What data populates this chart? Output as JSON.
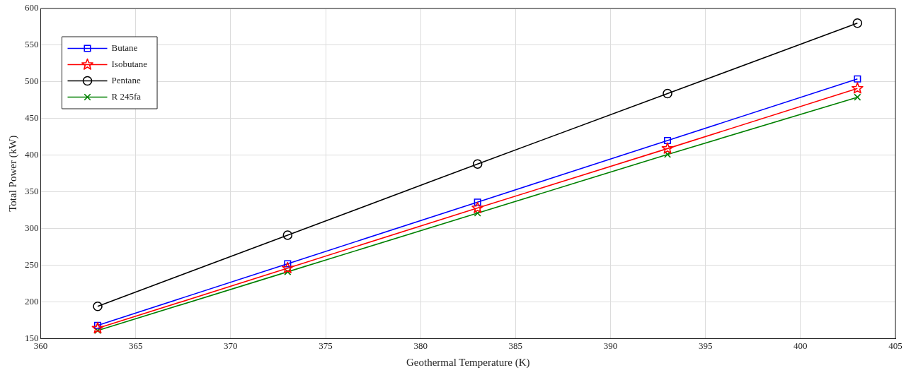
{
  "chart_data": {
    "type": "line",
    "xlabel": "Geothermal Temperature (K)",
    "ylabel": "Total Power (kW)",
    "x": [
      363,
      373,
      383,
      393,
      403
    ],
    "series": [
      {
        "name": "Butane",
        "color": "#0000ff",
        "marker": "square",
        "values": [
          168,
          252,
          336,
          420,
          504
        ]
      },
      {
        "name": "Isobutane",
        "color": "#ff0000",
        "marker": "star",
        "values": [
          164,
          246,
          328,
          409,
          491
        ]
      },
      {
        "name": "Pentane",
        "color": "#000000",
        "marker": "circle",
        "values": [
          194,
          291,
          388,
          484,
          580
        ]
      },
      {
        "name": "R 245fa",
        "color": "#008000",
        "marker": "cross",
        "values": [
          161,
          241,
          321,
          401,
          479
        ]
      }
    ],
    "xlim": [
      360,
      405
    ],
    "xticks": [
      360,
      365,
      370,
      375,
      380,
      385,
      390,
      395,
      400,
      405
    ],
    "ylim": [
      150,
      600
    ],
    "yticks": [
      150,
      200,
      250,
      300,
      350,
      400,
      450,
      500,
      550,
      600
    ],
    "grid": true,
    "legend": "top left",
    "line_style": "solid"
  }
}
